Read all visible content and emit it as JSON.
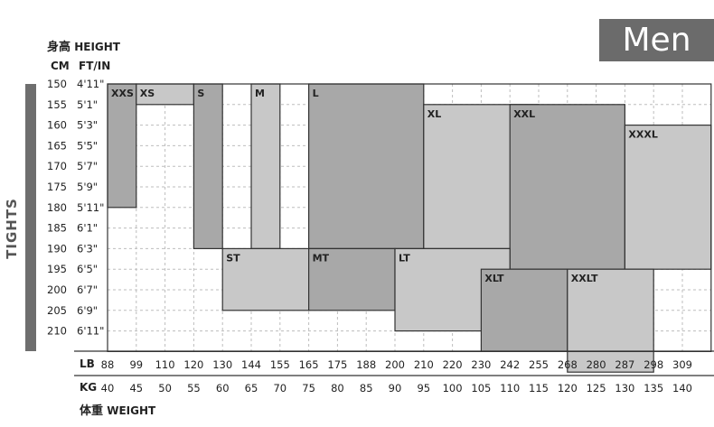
{
  "badge": "Men",
  "side_label": "TIGHTS",
  "height_title_zh": "身高",
  "height_title_en": "HEIGHT",
  "cm_header": "CM",
  "ftin_header": "FT/IN",
  "weight_title_zh": "体重",
  "weight_title_en": "WEIGHT",
  "lb_header": "LB",
  "kg_header": "KG",
  "chart_data": {
    "type": "heatmap",
    "heights_cm": [
      "150",
      "155",
      "160",
      "165",
      "170",
      "175",
      "180",
      "185",
      "190",
      "195",
      "200",
      "205",
      "210"
    ],
    "heights_ftin": [
      "4'11\"",
      "5'1\"",
      "5'3\"",
      "5'5\"",
      "5'7\"",
      "5'9\"",
      "5'11\"",
      "6'1\"",
      "6'3\"",
      "6'5\"",
      "6'7\"",
      "6'9\"",
      "6'11\""
    ],
    "weights_lb": [
      "88",
      "99",
      "110",
      "120",
      "130",
      "144",
      "155",
      "165",
      "175",
      "188",
      "200",
      "210",
      "220",
      "230",
      "242",
      "255",
      "268",
      "280",
      "287",
      "298",
      "309"
    ],
    "weights_kg": [
      "40",
      "45",
      "50",
      "55",
      "60",
      "65",
      "70",
      "75",
      "80",
      "85",
      "90",
      "95",
      "100",
      "105",
      "110",
      "115",
      "120",
      "125",
      "130",
      "135",
      "140"
    ],
    "sizes": [
      {
        "name": "XXS",
        "shade": "#a8a8a8",
        "cells": [
          [
            0,
            0
          ],
          [
            0,
            5
          ]
        ]
      },
      {
        "name": "XS",
        "shade": "#c8c8c8",
        "cells": [
          [
            1,
            0
          ],
          [
            2,
            0
          ],
          [
            1,
            1
          ],
          [
            1,
            5
          ]
        ]
      },
      {
        "name": "S",
        "shade": "#a8a8a8",
        "cells": [
          [
            3,
            0
          ],
          [
            3,
            7
          ]
        ]
      },
      {
        "name": "M",
        "shade": "#c8c8c8",
        "cells": [
          [
            5,
            0
          ],
          [
            5,
            7
          ]
        ]
      },
      {
        "name": "L",
        "shade": "#a8a8a8",
        "cells": [
          [
            7,
            0
          ],
          [
            10,
            7
          ]
        ]
      },
      {
        "name": "XL",
        "shade": "#c8c8c8",
        "cells": [
          [
            11,
            1
          ],
          [
            14,
            7
          ]
        ]
      },
      {
        "name": "XXL",
        "shade": "#a8a8a8",
        "cells": [
          [
            14,
            1
          ],
          [
            17,
            8
          ]
        ]
      },
      {
        "name": "XXXL",
        "shade": "#c8c8c8",
        "cells": [
          [
            18,
            2
          ],
          [
            20,
            8
          ]
        ]
      },
      {
        "name": "ST",
        "shade": "#c8c8c8",
        "cells": [
          [
            4,
            8
          ],
          [
            6,
            10
          ]
        ]
      },
      {
        "name": "MT",
        "shade": "#a8a8a8",
        "cells": [
          [
            7,
            8
          ],
          [
            9,
            10
          ]
        ]
      },
      {
        "name": "LT",
        "shade": "#c8c8c8",
        "cells": [
          [
            10,
            8
          ],
          [
            13,
            11
          ]
        ]
      },
      {
        "name": "XLT",
        "shade": "#a8a8a8",
        "cells": [
          [
            13,
            9
          ],
          [
            15,
            12
          ]
        ]
      },
      {
        "name": "XXLT",
        "shade": "#c8c8c8",
        "cells": [
          [
            16,
            9
          ],
          [
            18,
            13
          ]
        ]
      }
    ]
  }
}
